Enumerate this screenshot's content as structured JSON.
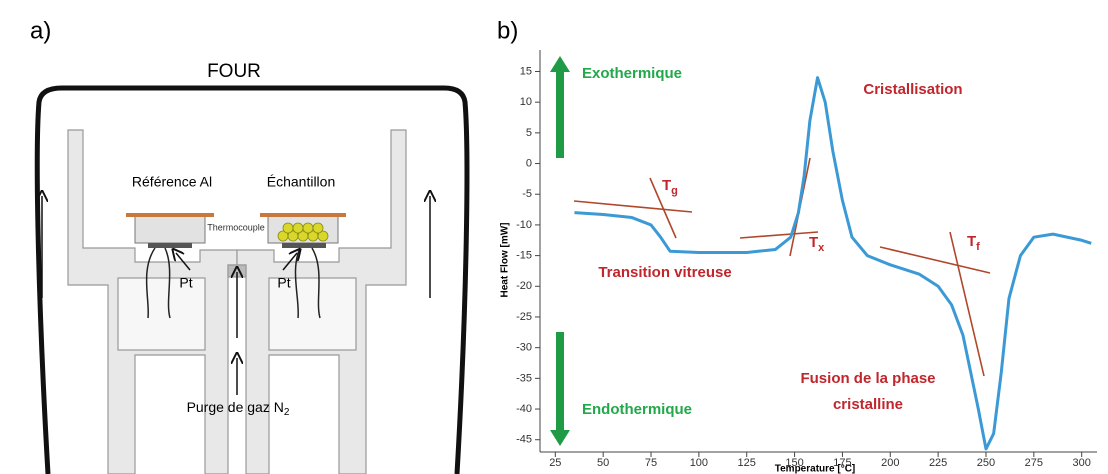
{
  "diagram": {
    "label": "a)",
    "title": "FOUR",
    "reference": "Référence Al",
    "sample": "Échantillon",
    "thermocouple": "Thermocouple",
    "pt_left": "Pt",
    "pt_right": "Pt",
    "purge": {
      "text": "Purge de gaz N",
      "sub": "2"
    }
  },
  "chart_data": {
    "type": "line",
    "label": "b)",
    "x_label": "Temperature [°C]",
    "y_label": "Heat Flow [mW]",
    "x": [
      35,
      50,
      65,
      75,
      80,
      85,
      100,
      125,
      140,
      148,
      152,
      155,
      158,
      162,
      166,
      170,
      175,
      180,
      188,
      200,
      215,
      225,
      232,
      238,
      242,
      246,
      250,
      254,
      258,
      262,
      268,
      275,
      285,
      300,
      305
    ],
    "series": [
      {
        "name": "Heat Flow",
        "color": "#3b9ad6",
        "values": [
          -8,
          -8.3,
          -8.8,
          -10,
          -12,
          -14.3,
          -14.5,
          -14.5,
          -14,
          -12,
          -8,
          -2,
          7,
          14,
          10,
          2,
          -6,
          -12,
          -15,
          -16.5,
          -18,
          -20,
          -23,
          -28,
          -34,
          -40,
          -46.5,
          -44,
          -34,
          -22,
          -15,
          -12,
          -11.5,
          -12.5,
          -13
        ]
      }
    ],
    "xlim": [
      17,
      308
    ],
    "ylim": [
      -47,
      18.5
    ],
    "xticks": [
      25,
      50,
      75,
      100,
      125,
      150,
      175,
      200,
      225,
      250,
      275,
      300
    ],
    "yticks": [
      15,
      10,
      5,
      0,
      -5,
      -10,
      -15,
      -20,
      -25,
      -30,
      -35,
      -40,
      -45
    ],
    "annotations": [
      "Exothermique",
      "Cristallisation",
      "Transition vitreuse",
      "Fusion de la phase",
      "cristalline",
      "Endothermique"
    ],
    "markers": [
      {
        "symbol": "T",
        "sub": "g"
      },
      {
        "symbol": "T",
        "sub": "x"
      },
      {
        "symbol": "T",
        "sub": "f"
      }
    ]
  }
}
